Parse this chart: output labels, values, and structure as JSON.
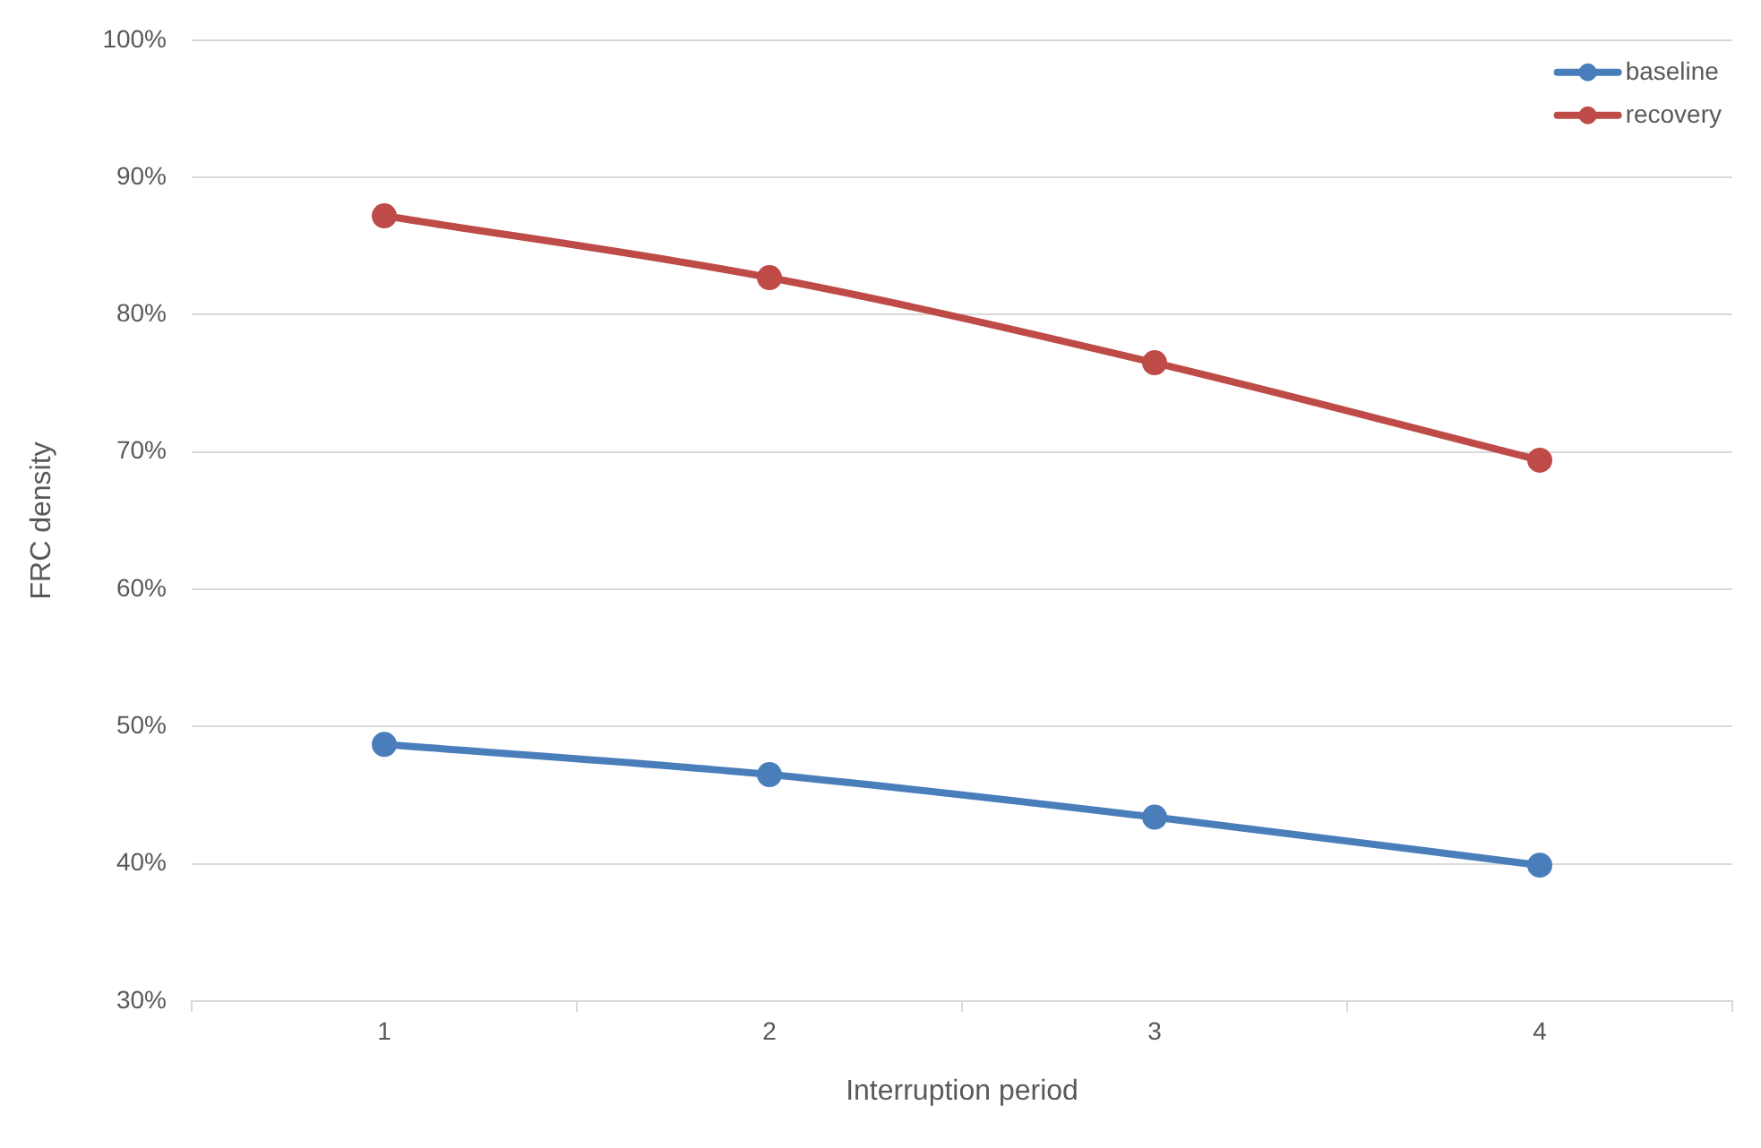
{
  "chart_data": {
    "type": "line",
    "xlabel": "Interruption period",
    "ylabel": "FRC density",
    "categories": [
      "1",
      "2",
      "3",
      "4"
    ],
    "series": [
      {
        "name": "baseline",
        "color": "#4a7ebb",
        "values": [
          48.7,
          46.5,
          43.4,
          39.9
        ]
      },
      {
        "name": "recovery",
        "color": "#be4b48",
        "values": [
          87.2,
          82.7,
          76.5,
          69.4
        ]
      }
    ],
    "ylim": [
      30,
      100
    ],
    "yticks": [
      {
        "value": 30,
        "label": "30%"
      },
      {
        "value": 40,
        "label": "40%"
      },
      {
        "value": 50,
        "label": "50%"
      },
      {
        "value": 60,
        "label": "60%"
      },
      {
        "value": 70,
        "label": "70%"
      },
      {
        "value": 80,
        "label": "80%"
      },
      {
        "value": 90,
        "label": "90%"
      },
      {
        "value": 100,
        "label": "100%"
      }
    ],
    "grid": "y",
    "legend": "top right",
    "marker": "circle",
    "line_style": "solid"
  }
}
